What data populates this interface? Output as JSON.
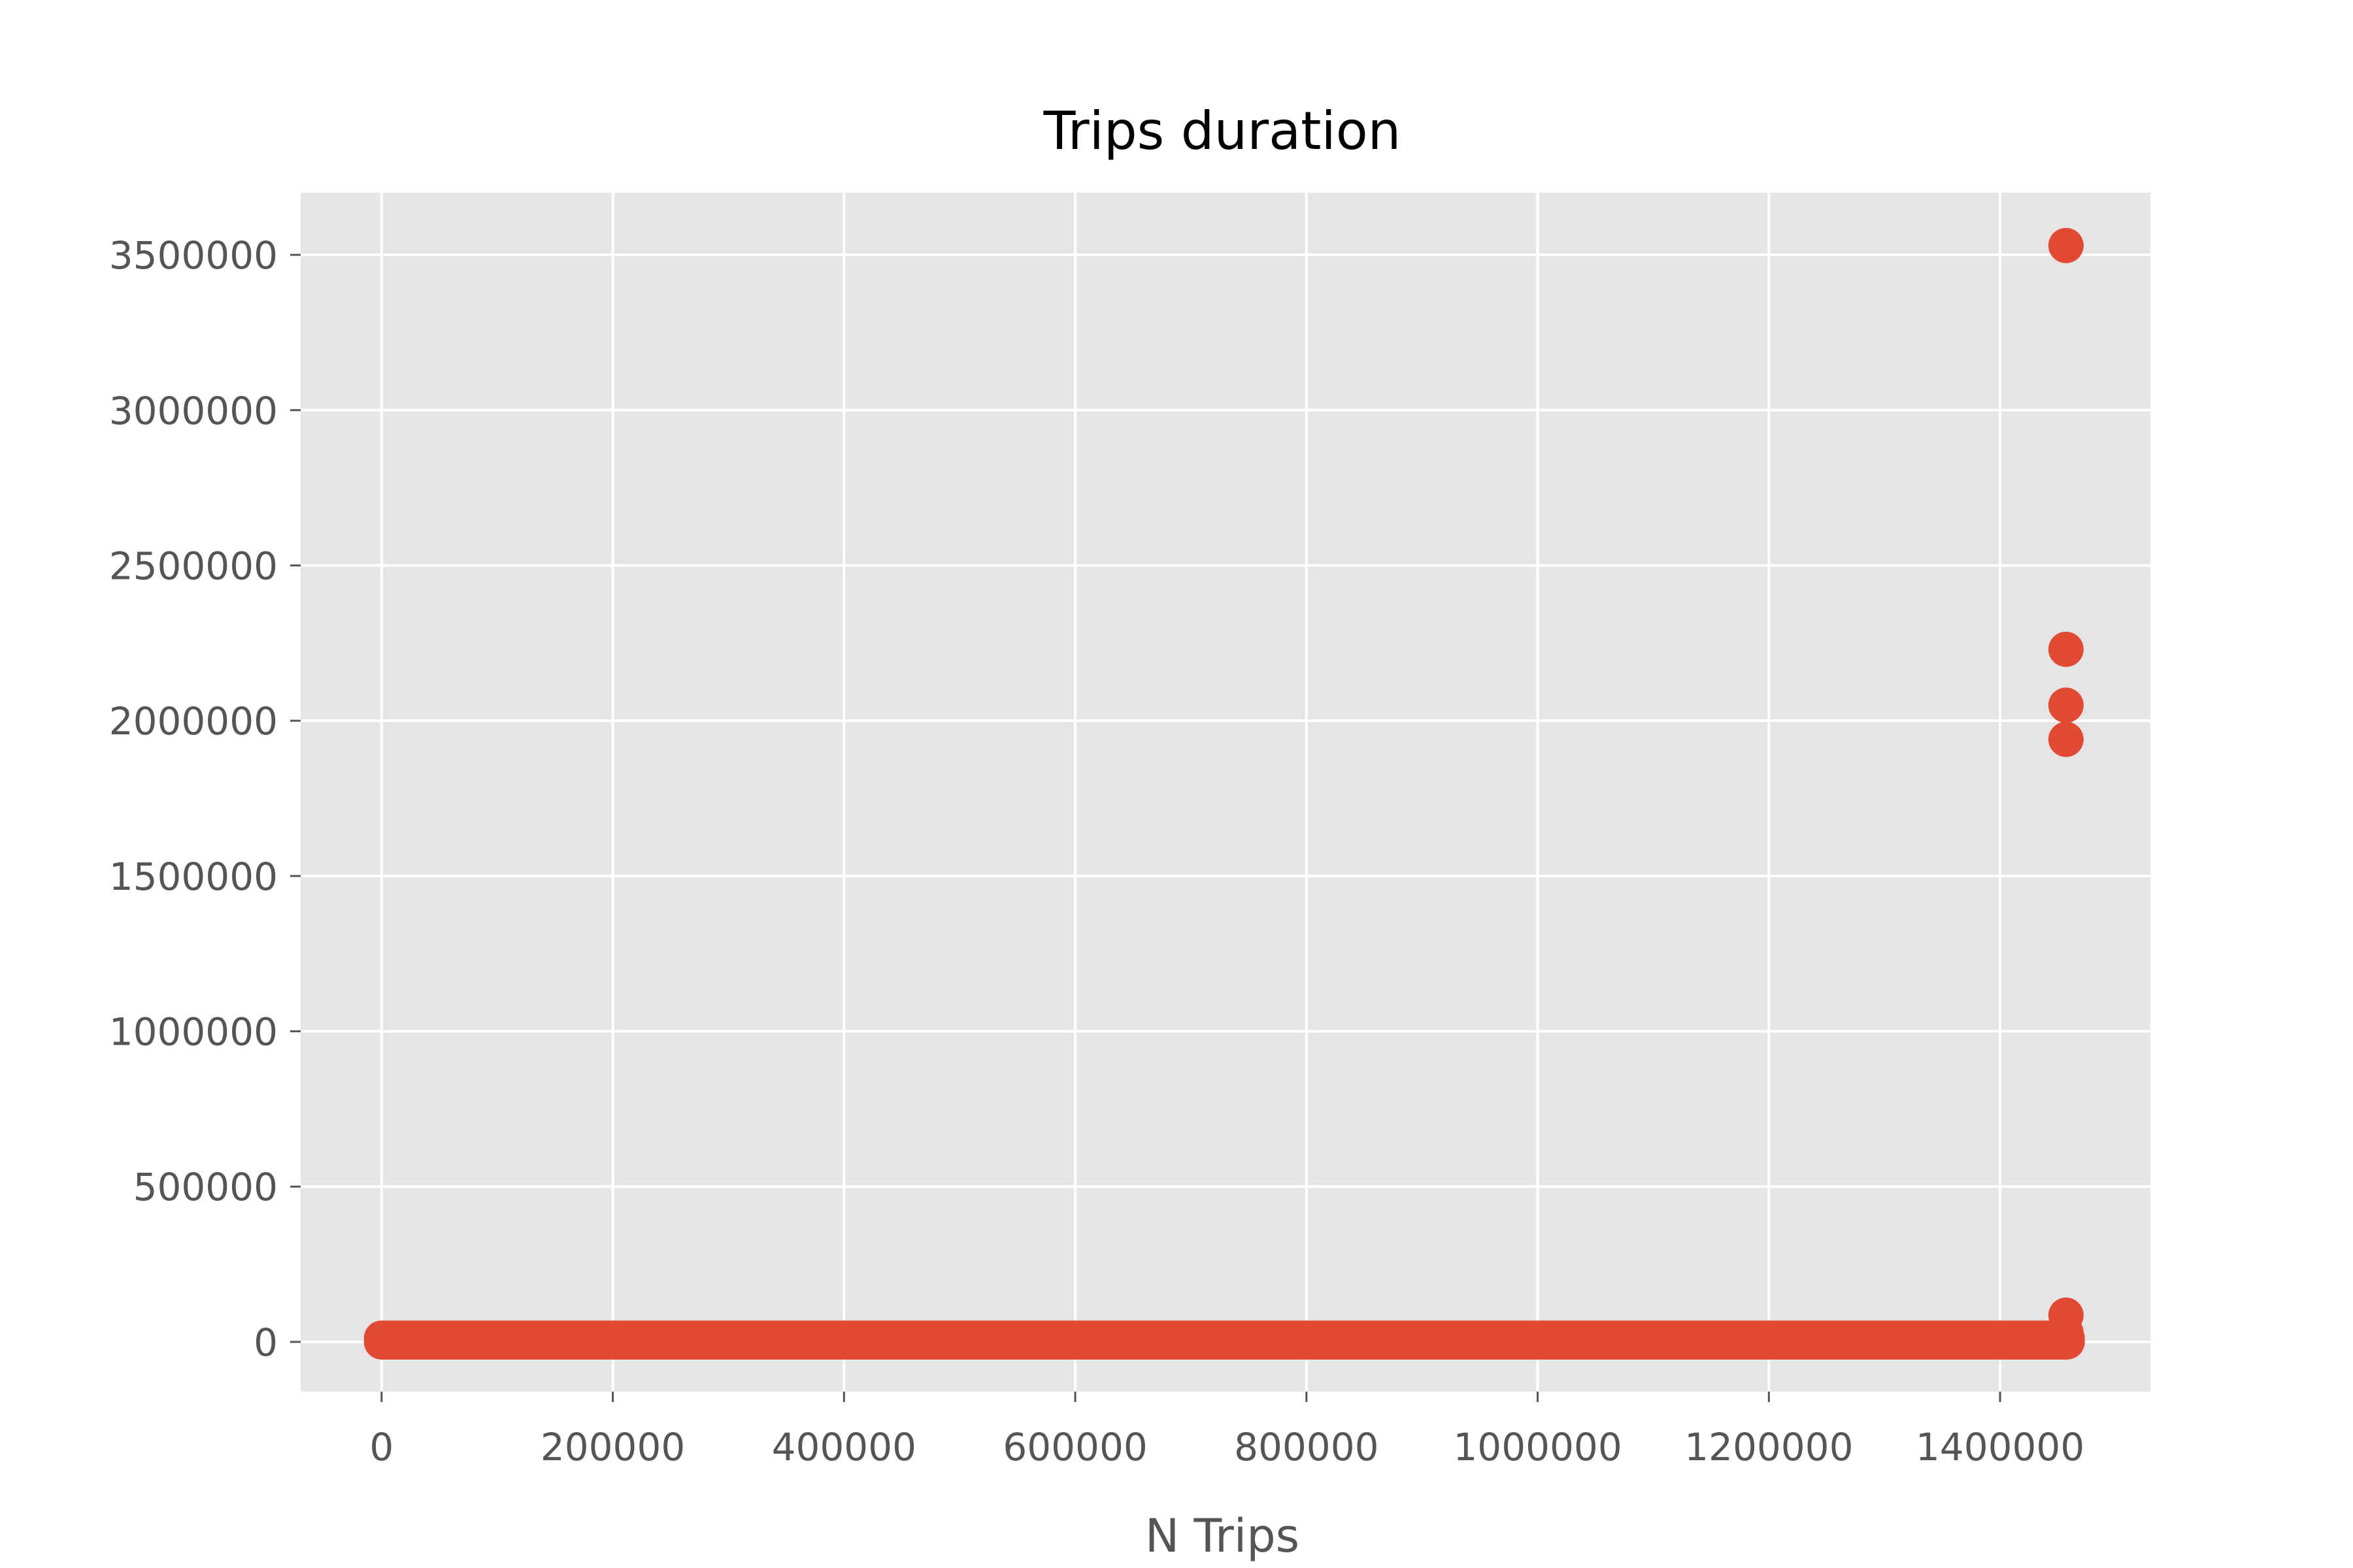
{
  "chart_data": {
    "type": "scatter",
    "title": "Trips duration",
    "xlabel": "N Trips",
    "ylabel": "",
    "xlim": [
      -70000,
      1530000
    ],
    "ylim": [
      -160000,
      3700000
    ],
    "x_ticks": [
      0,
      200000,
      400000,
      600000,
      800000,
      1000000,
      1200000,
      1400000
    ],
    "x_tick_labels": [
      "0",
      "200000",
      "400000",
      "600000",
      "800000",
      "1000000",
      "1200000",
      "1400000"
    ],
    "y_ticks": [
      0,
      500000,
      1000000,
      1500000,
      2000000,
      2500000,
      3000000,
      3500000
    ],
    "y_tick_labels": [
      "0",
      "500000",
      "1000000",
      "1500000",
      "2000000",
      "2500000",
      "3000000",
      "3500000"
    ],
    "grid": true,
    "style": "ggplot",
    "colors": {
      "marker": "#E24A33",
      "plot_bg": "#E5E5E5",
      "grid": "#FFFFFF",
      "tick_text": "#555555"
    },
    "series": [
      {
        "band": {
          "x_start": 0,
          "x_end": 1458000,
          "y_min": 0,
          "y_max": 12000
        },
        "points": [
          {
            "x": 1457000,
            "y": 86000
          },
          {
            "x": 1457000,
            "y": 30000
          },
          {
            "x": 1457000,
            "y": 1940000
          },
          {
            "x": 1457000,
            "y": 2050000
          },
          {
            "x": 1457000,
            "y": 2230000
          },
          {
            "x": 1457000,
            "y": 3530000
          }
        ]
      }
    ]
  }
}
